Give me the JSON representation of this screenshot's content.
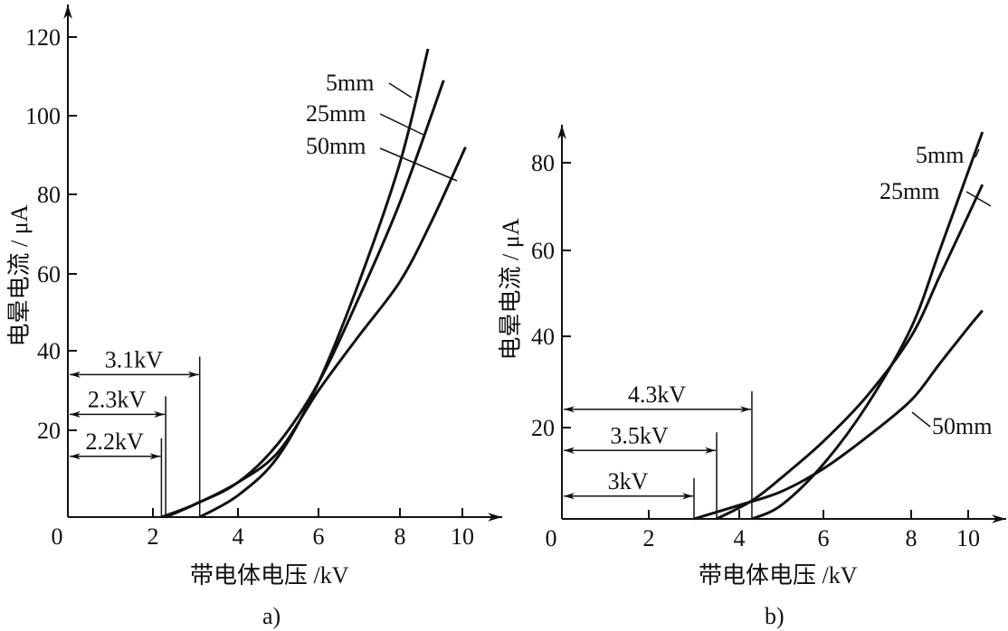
{
  "chart_data": [
    {
      "type": "line",
      "panel_label": "a)",
      "xlabel": "带电体电压 /kV",
      "ylabel": "电晕电流 / μA",
      "xlim": [
        0,
        10.5
      ],
      "ylim": [
        0,
        125
      ],
      "xticks": [
        "0",
        "2",
        "4",
        "6",
        "8",
        "10"
      ],
      "yticks": [
        "20",
        "40",
        "60",
        "80",
        "100",
        "120"
      ],
      "series": [
        {
          "name": "5mm",
          "x": [
            3.1,
            4,
            5,
            6,
            7,
            8,
            8.9
          ],
          "y": [
            0,
            5,
            14,
            32,
            58,
            88,
            117
          ]
        },
        {
          "name": "25mm",
          "x": [
            2.3,
            3,
            4,
            5,
            6,
            7,
            8,
            9.4
          ],
          "y": [
            0,
            3,
            8,
            17,
            32,
            54,
            78,
            109
          ]
        },
        {
          "name": "50mm",
          "x": [
            2.2,
            3,
            4,
            5,
            6,
            7,
            8,
            9,
            10.1
          ],
          "y": [
            0,
            3,
            8,
            15,
            30,
            44,
            58,
            73,
            92
          ]
        }
      ],
      "annotations": [
        {
          "text": "3.1kV",
          "x": 3.1,
          "y": 34
        },
        {
          "text": "2.3kV",
          "x": 2.3,
          "y": 24
        },
        {
          "text": "2.2kV",
          "x": 2.2,
          "y": 14
        }
      ]
    },
    {
      "type": "line",
      "panel_label": "b)",
      "xlabel": "带电体电压 /kV",
      "ylabel": "电晕电流 / μA",
      "xlim": [
        0,
        11
      ],
      "ylim": [
        0,
        90
      ],
      "xticks": [
        "0",
        "2",
        "4",
        "6",
        "8",
        "10"
      ],
      "yticks": [
        "20",
        "40",
        "60",
        "80"
      ],
      "series": [
        {
          "name": "5mm",
          "x": [
            4.3,
            5,
            6,
            7,
            8,
            9,
            10,
            10.5
          ],
          "y": [
            0,
            3,
            12,
            25,
            42,
            60,
            78,
            87
          ]
        },
        {
          "name": "25mm",
          "x": [
            3.5,
            4.3,
            5,
            6,
            7,
            8,
            9,
            10,
            10.5
          ],
          "y": [
            0,
            4,
            9,
            17,
            27,
            40,
            54,
            68,
            75
          ]
        },
        {
          "name": "50mm",
          "x": [
            3,
            4,
            5,
            6,
            7,
            8,
            9,
            10,
            10.5
          ],
          "y": [
            0,
            3,
            6,
            11,
            18,
            26,
            34,
            42,
            46
          ]
        }
      ],
      "annotations": [
        {
          "text": "4.3kV",
          "x": 4.3,
          "y": 24
        },
        {
          "text": "3.5kV",
          "x": 3.5,
          "y": 15
        },
        {
          "text": "3kV",
          "x": 3,
          "y": 5
        }
      ]
    }
  ]
}
